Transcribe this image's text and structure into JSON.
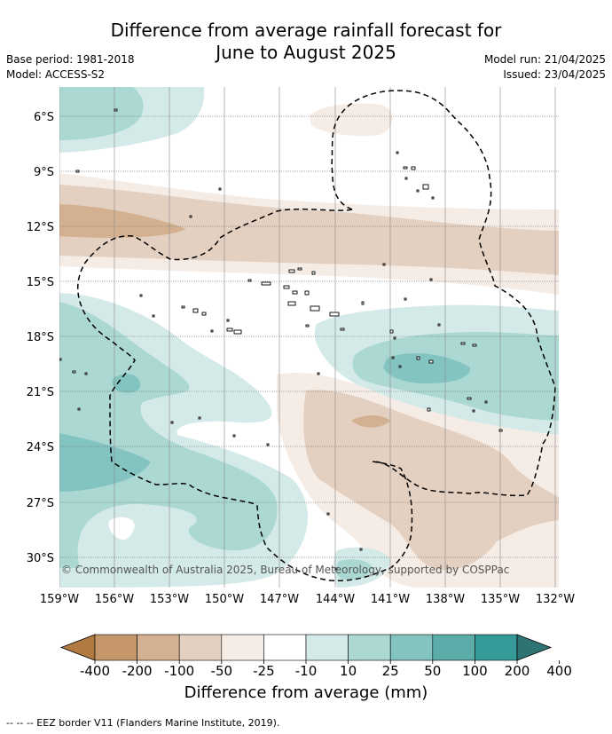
{
  "header": {
    "title_line1": "Difference from average rainfall forecast for",
    "title_line2": "June to August 2025",
    "base_period": "Base period: 1981-2018",
    "model": "Model: ACCESS-S2",
    "model_run": "Model run: 21/04/2025",
    "issued": "Issued: 23/04/2025"
  },
  "map": {
    "lat_labels": [
      "6°S",
      "9°S",
      "12°S",
      "15°S",
      "18°S",
      "21°S",
      "24°S",
      "27°S",
      "30°S"
    ],
    "lon_labels": [
      "159°W",
      "156°W",
      "153°W",
      "150°W",
      "147°W",
      "144°W",
      "141°W",
      "138°W",
      "135°W",
      "132°W"
    ],
    "copyright": "© Commonwealth of Australia 2025, Bureau of Meteorology, supported by COSPPac"
  },
  "colorbar": {
    "ticks": [
      "-400",
      "-200",
      "-100",
      "-50",
      "-25",
      "-10",
      "10",
      "25",
      "50",
      "100",
      "200",
      "400"
    ],
    "colors": [
      "#b07a40",
      "#c4966a",
      "#d2b090",
      "#e4d0c0",
      "#f5ece6",
      "#ffffff",
      "#d4eae8",
      "#acd8d4",
      "#84c4c0",
      "#5cacaa",
      "#359a98",
      "#2d7472"
    ],
    "title": "Difference from average (mm)"
  },
  "footer": {
    "legend_text": "--  --  -- EEZ border V11 (Flanders Marine Institute, 2019)."
  }
}
